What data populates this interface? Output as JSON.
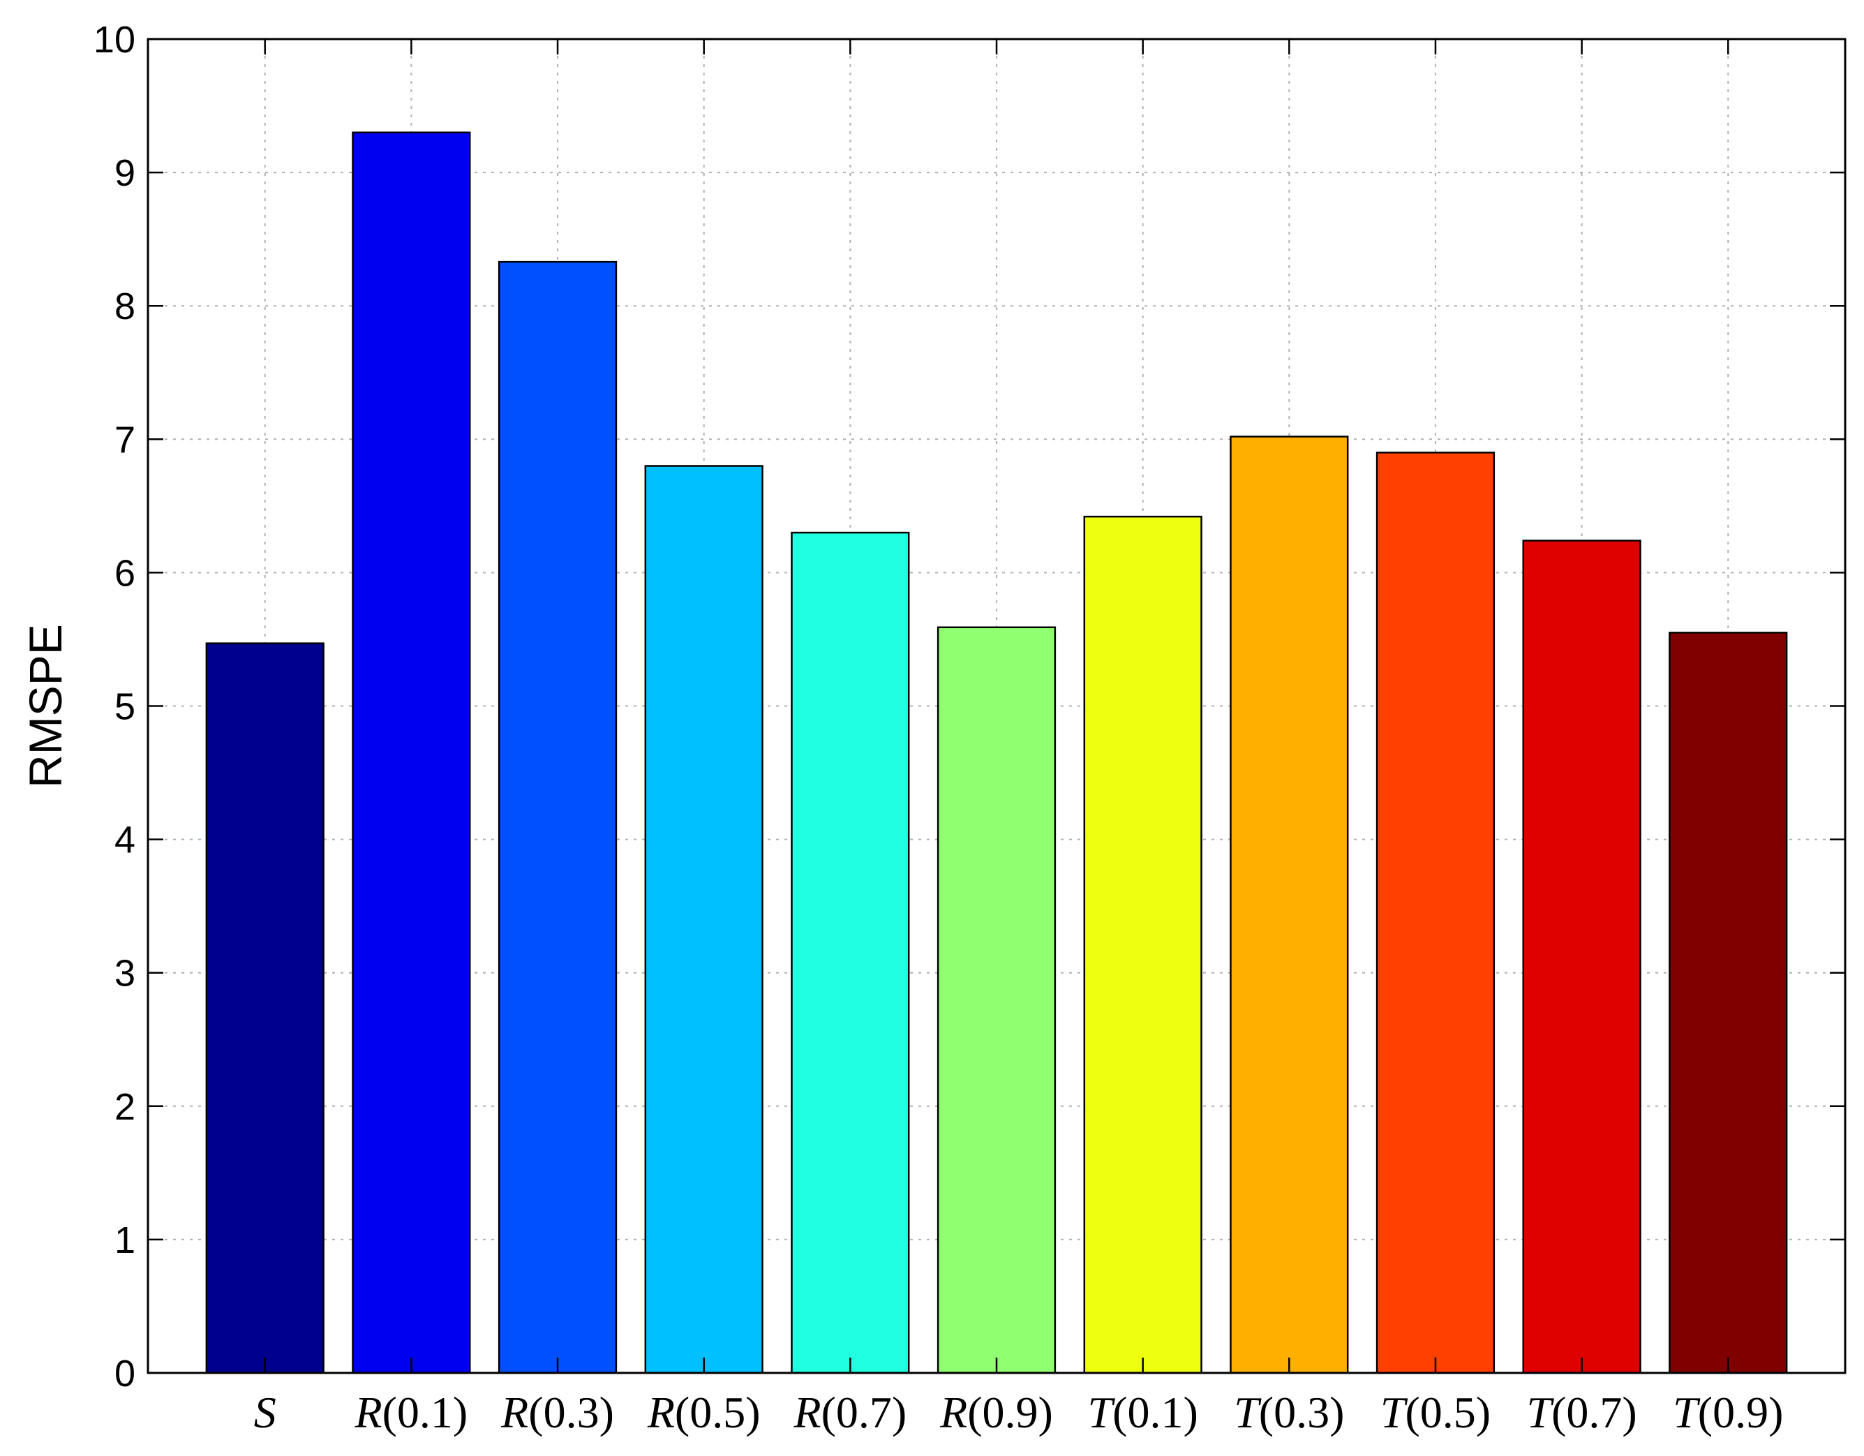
{
  "chart_data": {
    "type": "bar",
    "categories": [
      "S",
      "R(0.1)",
      "R(0.3)",
      "R(0.5)",
      "R(0.7)",
      "R(0.9)",
      "T(0.1)",
      "T(0.3)",
      "T(0.5)",
      "T(0.7)",
      "T(0.9)"
    ],
    "category_parts": [
      {
        "letter": "S",
        "arg": ""
      },
      {
        "letter": "R",
        "arg": "(0.1)"
      },
      {
        "letter": "R",
        "arg": "(0.3)"
      },
      {
        "letter": "R",
        "arg": "(0.5)"
      },
      {
        "letter": "R",
        "arg": "(0.7)"
      },
      {
        "letter": "R",
        "arg": "(0.9)"
      },
      {
        "letter": "T",
        "arg": "(0.1)"
      },
      {
        "letter": "T",
        "arg": "(0.3)"
      },
      {
        "letter": "T",
        "arg": "(0.5)"
      },
      {
        "letter": "T",
        "arg": "(0.7)"
      },
      {
        "letter": "T",
        "arg": "(0.9)"
      }
    ],
    "values": [
      5.47,
      9.3,
      8.33,
      6.8,
      6.3,
      5.59,
      6.42,
      7.02,
      6.9,
      6.24,
      5.55
    ],
    "colors": [
      "#00008f",
      "#0000f0",
      "#0050ff",
      "#00c0ff",
      "#20ffdf",
      "#90ff70",
      "#efff10",
      "#ffaf00",
      "#ff4000",
      "#df0000",
      "#800000"
    ],
    "xlabel": "",
    "ylabel": "RMSPE",
    "ylim": [
      0,
      10
    ],
    "yticks": [
      0,
      1,
      2,
      3,
      4,
      5,
      6,
      7,
      8,
      9,
      10
    ],
    "grid": true
  }
}
